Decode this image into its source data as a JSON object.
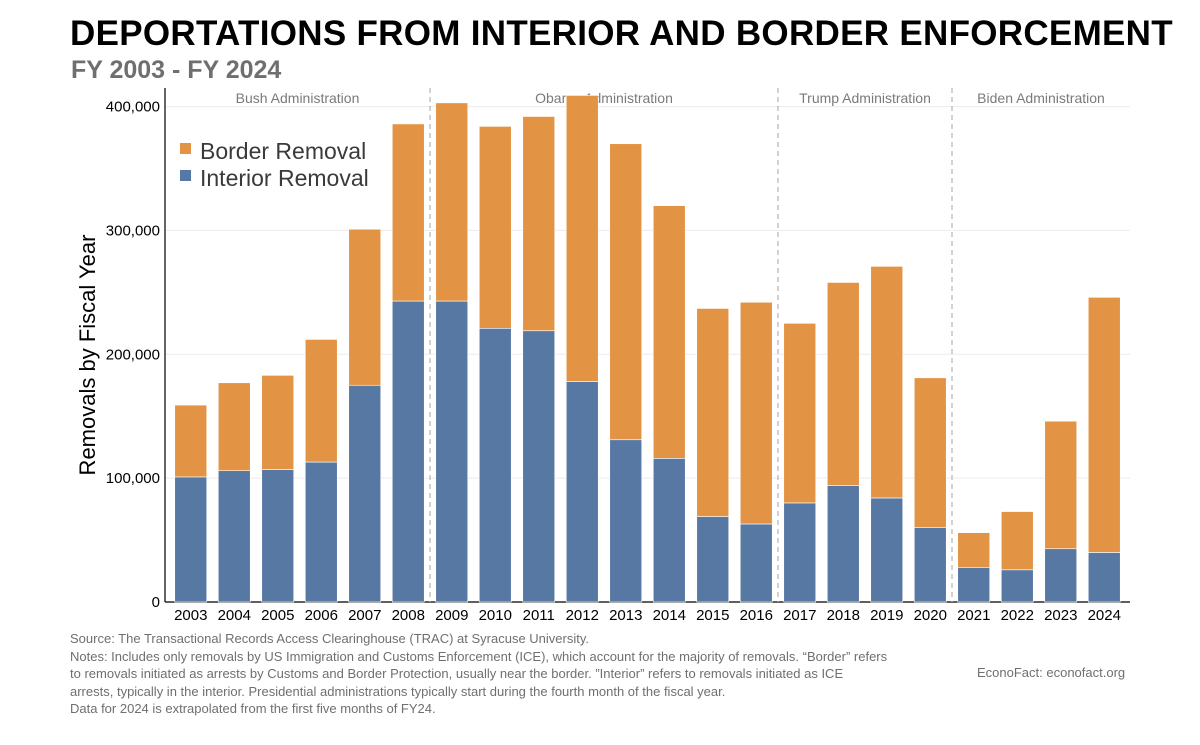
{
  "title": "DEPORTATIONS FROM INTERIOR AND BORDER ENFORCEMENT",
  "subtitle": "FY 2003 - FY 2024",
  "chart_data": {
    "type": "bar",
    "stacked": true,
    "categories": [
      "2003",
      "2004",
      "2005",
      "2006",
      "2007",
      "2008",
      "2009",
      "2010",
      "2011",
      "2012",
      "2013",
      "2014",
      "2015",
      "2016",
      "2017",
      "2018",
      "2019",
      "2020",
      "2021",
      "2022",
      "2023",
      "2024"
    ],
    "series": [
      {
        "name": "Interior Removal",
        "color": "#5878a4",
        "values": [
          101000,
          106000,
          107000,
          113000,
          175000,
          243000,
          243000,
          221000,
          219000,
          178000,
          131000,
          116000,
          69000,
          63000,
          80000,
          94000,
          84000,
          60000,
          28000,
          26000,
          43000,
          40000
        ]
      },
      {
        "name": "Border Removal",
        "color": "#e29444",
        "values": [
          58000,
          71000,
          76000,
          99000,
          126000,
          143000,
          160000,
          163000,
          173000,
          231000,
          239000,
          204000,
          168000,
          179000,
          145000,
          164000,
          187000,
          121000,
          28000,
          47000,
          103000,
          206000
        ]
      }
    ],
    "ylabel": "Removals by Fiscal Year",
    "xlabel": "",
    "ylim": [
      0,
      415000
    ],
    "yticks": [
      0,
      100000,
      200000,
      300000,
      400000
    ],
    "ytick_labels": [
      "0",
      "100,000",
      "200,000",
      "300,000",
      "400,000"
    ],
    "grid": true,
    "legend_position": "top-left",
    "legend_order": [
      "Border Removal",
      "Interior Removal"
    ],
    "eras": [
      {
        "label": "Bush Administration",
        "from": "2003",
        "to": "2008"
      },
      {
        "label": "Obama Administration",
        "from": "2009",
        "to": "2016"
      },
      {
        "label": "Trump Administration",
        "from": "2017",
        "to": "2020"
      },
      {
        "label": "Biden Administration",
        "from": "2021",
        "to": "2024"
      }
    ]
  },
  "notes": [
    "Source: The Transactional Records Access Clearinghouse (TRAC) at Syracuse University.",
    "Notes: Includes only removals by US Immigration and Customs Enforcement (ICE), which account for the majority of removals. “Border” refers",
    "to removals initiated as arrests by Customs and Border Protection, usually near the border. ”Interior” refers to removals initiated as ICE",
    "arrests, typically in the interior. Presidential administrations typically start during the fourth month of the fiscal year.",
    "Data for 2024 is extrapolated from the first five months of FY24."
  ],
  "credit": "EconoFact:  econofact.org"
}
